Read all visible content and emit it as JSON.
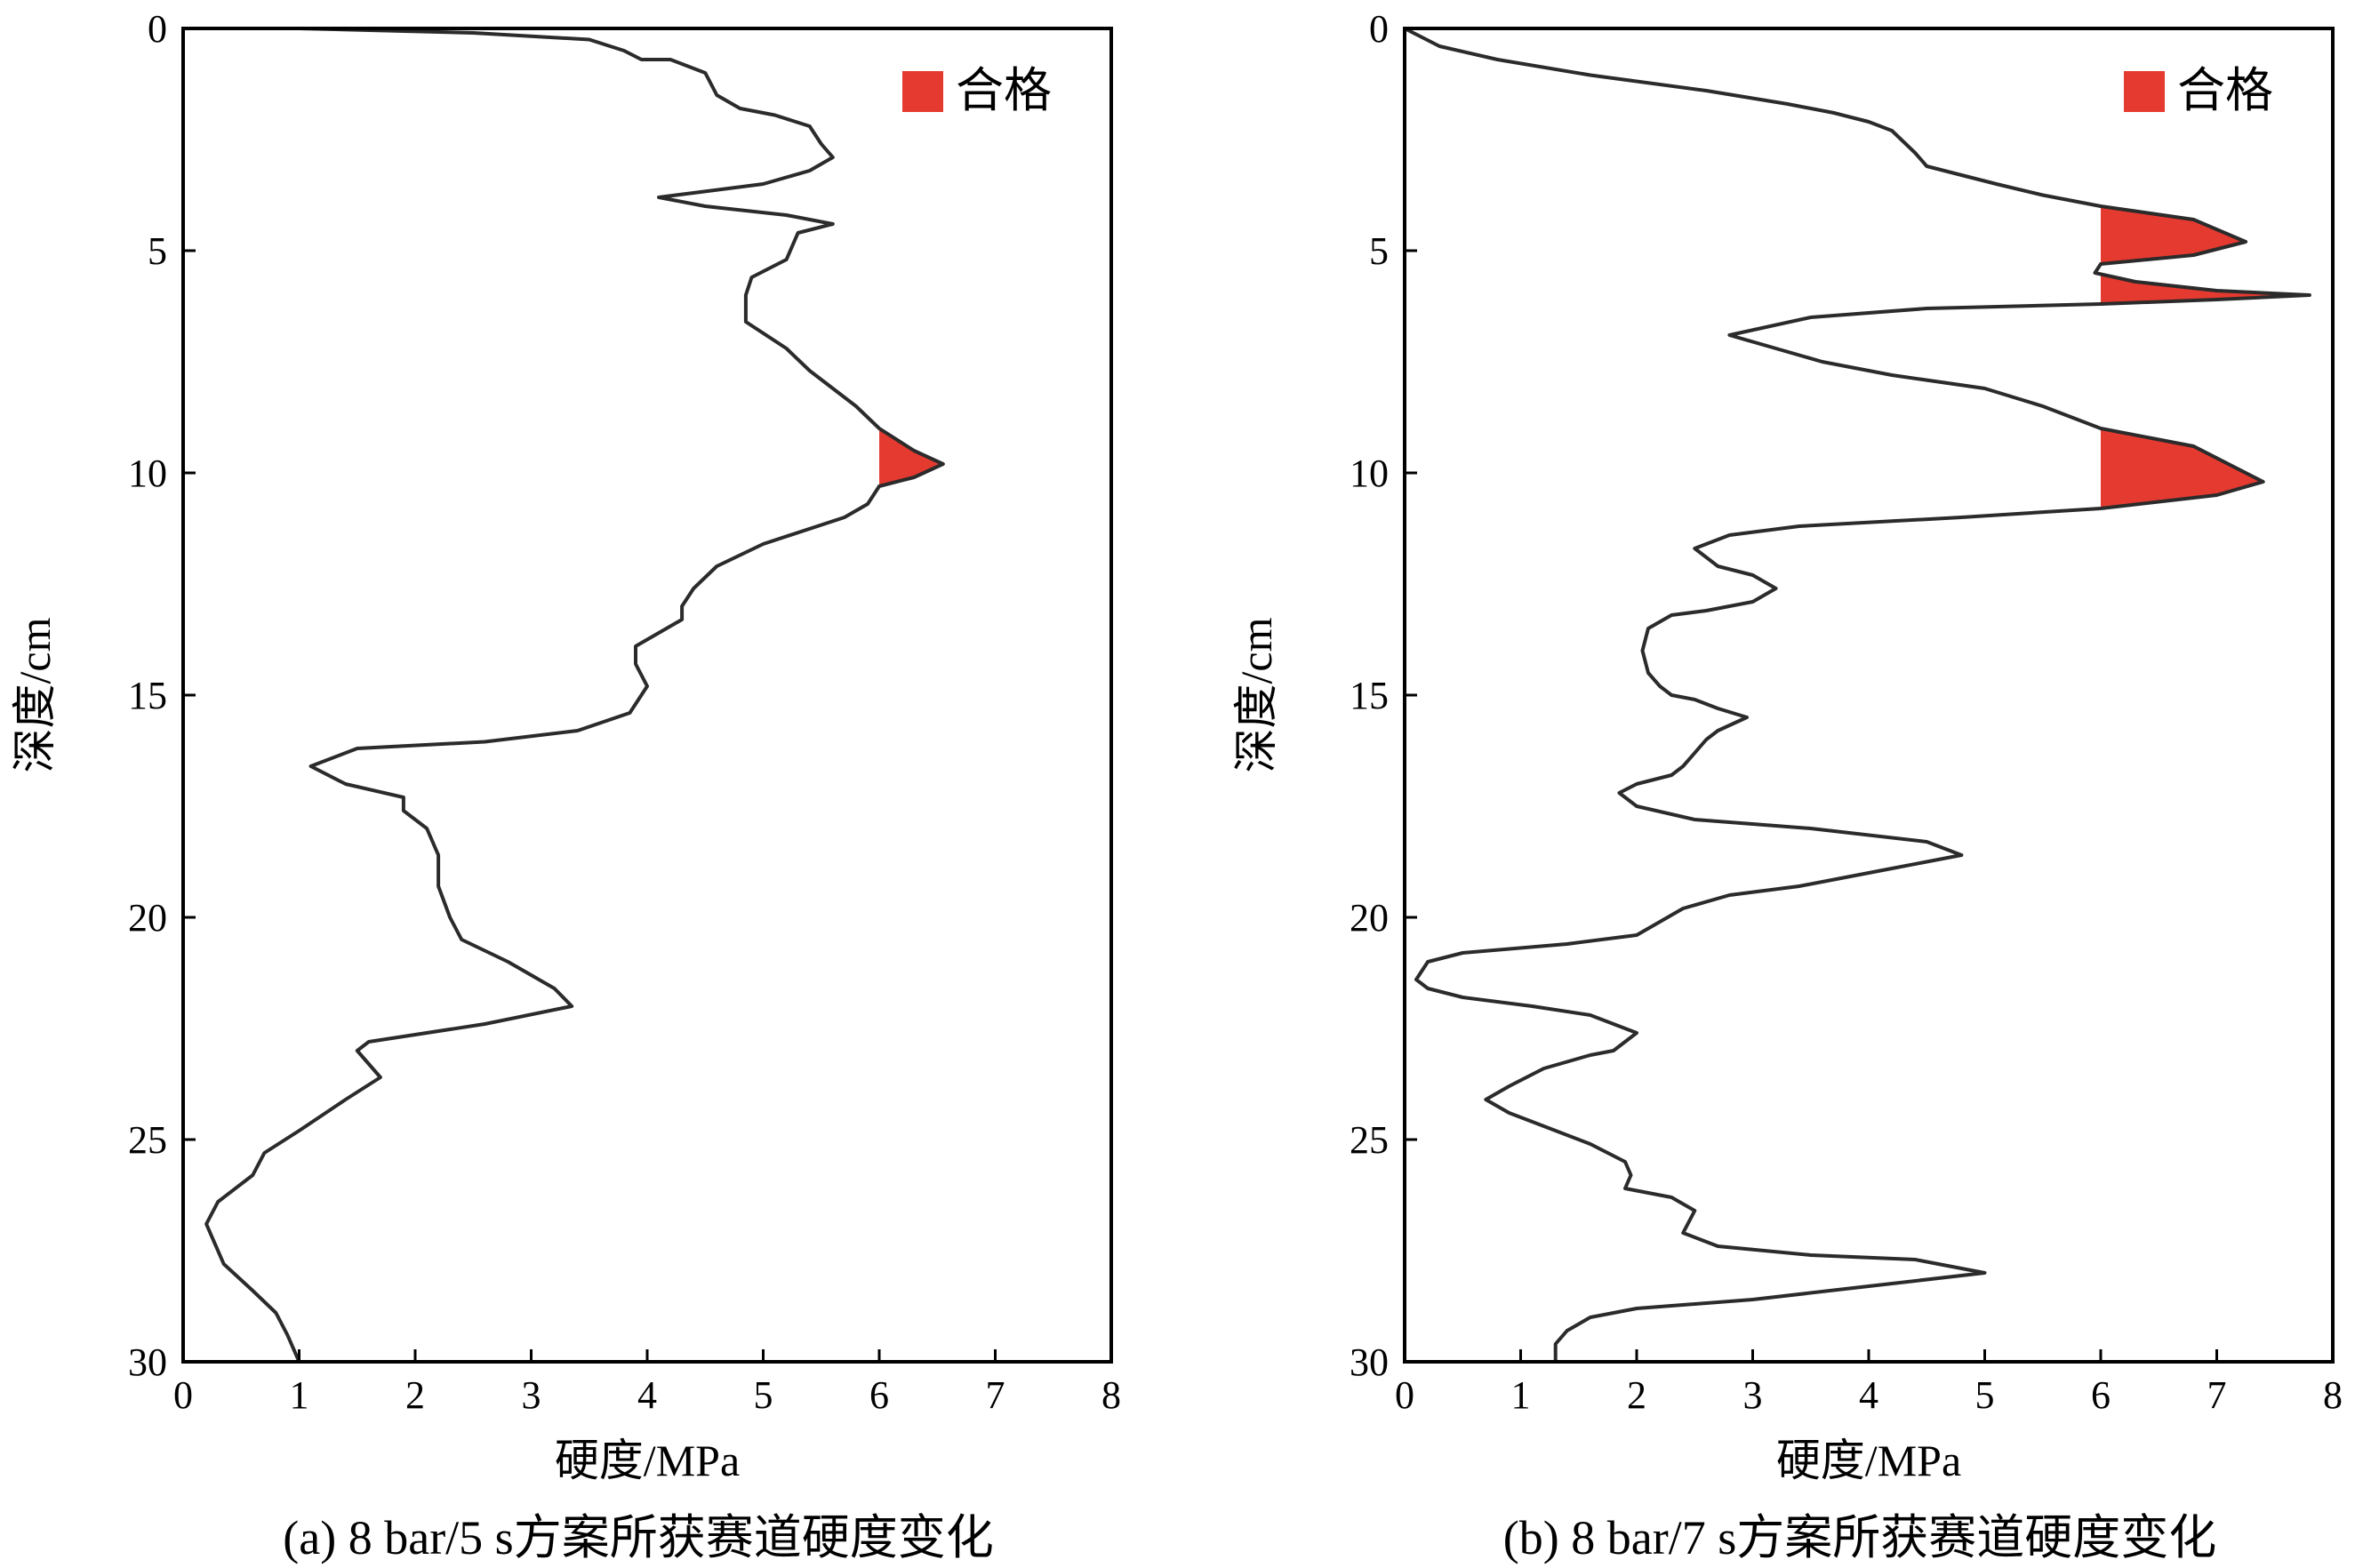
{
  "qualify_threshold": 6,
  "colors": {
    "curve": "#2b2b2b",
    "qualified_fill": "#e53a30",
    "axis": "#000000"
  },
  "chart_data": [
    {
      "type": "line",
      "orientation": "depth-profile",
      "title": "(a) 8 bar/5 s方案所获赛道硬度变化",
      "xlabel": "硬度/MPa",
      "ylabel": "深度/cm",
      "xlim": [
        0,
        8
      ],
      "ylim": [
        0,
        30
      ],
      "y_inverted": true,
      "xticks": [
        "0",
        "1",
        "2",
        "3",
        "4",
        "5",
        "6",
        "7",
        "8"
      ],
      "yticks": [
        "0",
        "5",
        "10",
        "15",
        "20",
        "25",
        "30"
      ],
      "legend": {
        "label": "合格",
        "position": "top-right"
      },
      "grid": false,
      "series": [
        {
          "points": [
            [
              1.0,
              0
            ],
            [
              2.5,
              0.1
            ],
            [
              3.5,
              0.25
            ],
            [
              3.8,
              0.5
            ],
            [
              3.95,
              0.7
            ],
            [
              4.2,
              0.7
            ],
            [
              4.5,
              1.0
            ],
            [
              4.6,
              1.5
            ],
            [
              4.8,
              1.8
            ],
            [
              5.1,
              1.95
            ],
            [
              5.4,
              2.2
            ],
            [
              5.5,
              2.6
            ],
            [
              5.6,
              2.9
            ],
            [
              5.4,
              3.2
            ],
            [
              5.0,
              3.5
            ],
            [
              4.4,
              3.7
            ],
            [
              4.1,
              3.8
            ],
            [
              4.5,
              4.0
            ],
            [
              5.2,
              4.2
            ],
            [
              5.6,
              4.4
            ],
            [
              5.3,
              4.6
            ],
            [
              5.25,
              4.9
            ],
            [
              5.2,
              5.2
            ],
            [
              4.9,
              5.6
            ],
            [
              4.85,
              6.0
            ],
            [
              4.85,
              6.6
            ],
            [
              5.2,
              7.2
            ],
            [
              5.4,
              7.7
            ],
            [
              5.6,
              8.1
            ],
            [
              5.8,
              8.5
            ],
            [
              6.0,
              9.0
            ],
            [
              6.3,
              9.5
            ],
            [
              6.55,
              9.8
            ],
            [
              6.3,
              10.1
            ],
            [
              6.0,
              10.3
            ],
            [
              5.9,
              10.7
            ],
            [
              5.7,
              11.0
            ],
            [
              5.0,
              11.6
            ],
            [
              4.6,
              12.1
            ],
            [
              4.4,
              12.6
            ],
            [
              4.3,
              13.0
            ],
            [
              4.3,
              13.3
            ],
            [
              4.1,
              13.6
            ],
            [
              3.9,
              13.9
            ],
            [
              3.9,
              14.3
            ],
            [
              4.0,
              14.8
            ],
            [
              3.85,
              15.4
            ],
            [
              3.4,
              15.8
            ],
            [
              2.6,
              16.05
            ],
            [
              1.5,
              16.2
            ],
            [
              1.1,
              16.6
            ],
            [
              1.4,
              17.0
            ],
            [
              1.9,
              17.3
            ],
            [
              1.9,
              17.6
            ],
            [
              2.1,
              18.0
            ],
            [
              2.2,
              18.6
            ],
            [
              2.2,
              19.3
            ],
            [
              2.3,
              20.0
            ],
            [
              2.4,
              20.5
            ],
            [
              2.8,
              21.0
            ],
            [
              3.2,
              21.6
            ],
            [
              3.35,
              22.0
            ],
            [
              2.6,
              22.4
            ],
            [
              1.6,
              22.8
            ],
            [
              1.5,
              23.0
            ],
            [
              1.7,
              23.6
            ],
            [
              1.4,
              24.1
            ],
            [
              1.0,
              24.8
            ],
            [
              0.7,
              25.3
            ],
            [
              0.6,
              25.8
            ],
            [
              0.3,
              26.4
            ],
            [
              0.2,
              26.9
            ],
            [
              0.25,
              27.2
            ],
            [
              0.35,
              27.8
            ],
            [
              0.6,
              28.4
            ],
            [
              0.8,
              28.9
            ],
            [
              0.9,
              29.4
            ],
            [
              1.0,
              30.0
            ]
          ]
        }
      ],
      "qualified_regions": [
        {
          "depth_range": [
            9.0,
            10.4
          ]
        }
      ]
    },
    {
      "type": "line",
      "orientation": "depth-profile",
      "title": "(b) 8 bar/7 s方案所获赛道硬度变化",
      "xlabel": "硬度/MPa",
      "ylabel": "深度/cm",
      "xlim": [
        0,
        8
      ],
      "ylim": [
        0,
        30
      ],
      "y_inverted": true,
      "xticks": [
        "0",
        "1",
        "2",
        "3",
        "4",
        "5",
        "6",
        "7",
        "8"
      ],
      "yticks": [
        "0",
        "5",
        "10",
        "15",
        "20",
        "25",
        "30"
      ],
      "legend": {
        "label": "合格",
        "position": "top-right"
      },
      "grid": false,
      "series": [
        {
          "points": [
            [
              0.0,
              0
            ],
            [
              0.3,
              0.4
            ],
            [
              0.8,
              0.7
            ],
            [
              1.6,
              1.05
            ],
            [
              2.6,
              1.4
            ],
            [
              3.3,
              1.7
            ],
            [
              3.7,
              1.9
            ],
            [
              4.0,
              2.1
            ],
            [
              4.2,
              2.3
            ],
            [
              4.4,
              2.8
            ],
            [
              4.5,
              3.1
            ],
            [
              4.8,
              3.3
            ],
            [
              5.1,
              3.5
            ],
            [
              5.5,
              3.75
            ],
            [
              6.0,
              4.0
            ],
            [
              6.8,
              4.3
            ],
            [
              7.25,
              4.8
            ],
            [
              6.8,
              5.1
            ],
            [
              6.0,
              5.3
            ],
            [
              5.95,
              5.5
            ],
            [
              6.3,
              5.7
            ],
            [
              7.0,
              5.9
            ],
            [
              7.8,
              6.0
            ],
            [
              7.0,
              6.1
            ],
            [
              6.0,
              6.2
            ],
            [
              4.5,
              6.3
            ],
            [
              3.5,
              6.5
            ],
            [
              2.8,
              6.9
            ],
            [
              3.2,
              7.2
            ],
            [
              3.6,
              7.5
            ],
            [
              4.2,
              7.8
            ],
            [
              5.0,
              8.1
            ],
            [
              5.5,
              8.5
            ],
            [
              6.0,
              9.0
            ],
            [
              6.8,
              9.4
            ],
            [
              7.4,
              10.2
            ],
            [
              7.0,
              10.5
            ],
            [
              6.0,
              10.8
            ],
            [
              4.8,
              11.0
            ],
            [
              3.4,
              11.2
            ],
            [
              2.8,
              11.4
            ],
            [
              2.5,
              11.7
            ],
            [
              2.7,
              12.1
            ],
            [
              3.0,
              12.3
            ],
            [
              3.2,
              12.6
            ],
            [
              3.0,
              12.9
            ],
            [
              2.6,
              13.1
            ],
            [
              2.3,
              13.2
            ],
            [
              2.1,
              13.5
            ],
            [
              2.05,
              14.0
            ],
            [
              2.1,
              14.5
            ],
            [
              2.2,
              14.8
            ],
            [
              2.3,
              15.0
            ],
            [
              2.5,
              15.1
            ],
            [
              2.7,
              15.3
            ],
            [
              2.95,
              15.5
            ],
            [
              2.7,
              15.8
            ],
            [
              2.6,
              16.0
            ],
            [
              2.5,
              16.3
            ],
            [
              2.4,
              16.6
            ],
            [
              2.3,
              16.8
            ],
            [
              2.0,
              17.0
            ],
            [
              1.85,
              17.2
            ],
            [
              2.0,
              17.5
            ],
            [
              2.5,
              17.8
            ],
            [
              3.5,
              18.0
            ],
            [
              4.5,
              18.3
            ],
            [
              4.8,
              18.6
            ],
            [
              4.2,
              18.9
            ],
            [
              3.4,
              19.3
            ],
            [
              2.8,
              19.5
            ],
            [
              2.4,
              19.8
            ],
            [
              2.2,
              20.1
            ],
            [
              2.0,
              20.4
            ],
            [
              1.4,
              20.6
            ],
            [
              0.5,
              20.8
            ],
            [
              0.2,
              21.0
            ],
            [
              0.1,
              21.4
            ],
            [
              0.2,
              21.6
            ],
            [
              0.5,
              21.8
            ],
            [
              1.1,
              22.0
            ],
            [
              1.6,
              22.2
            ],
            [
              2.0,
              22.6
            ],
            [
              1.8,
              23.0
            ],
            [
              1.6,
              23.1
            ],
            [
              1.2,
              23.4
            ],
            [
              0.9,
              23.8
            ],
            [
              0.7,
              24.1
            ],
            [
              0.9,
              24.4
            ],
            [
              1.3,
              24.8
            ],
            [
              1.6,
              25.1
            ],
            [
              1.9,
              25.5
            ],
            [
              1.95,
              25.8
            ],
            [
              1.9,
              26.1
            ],
            [
              2.1,
              26.2
            ],
            [
              2.3,
              26.3
            ],
            [
              2.5,
              26.6
            ],
            [
              2.4,
              27.1
            ],
            [
              2.7,
              27.4
            ],
            [
              3.5,
              27.6
            ],
            [
              4.4,
              27.7
            ],
            [
              5.0,
              28.0
            ],
            [
              4.0,
              28.3
            ],
            [
              3.0,
              28.6
            ],
            [
              2.0,
              28.8
            ],
            [
              1.6,
              29.0
            ],
            [
              1.4,
              29.3
            ],
            [
              1.3,
              29.6
            ],
            [
              1.3,
              30.0
            ]
          ]
        }
      ],
      "qualified_regions": [
        {
          "depth_range": [
            4.0,
            6.2
          ]
        },
        {
          "depth_range": [
            9.0,
            10.8
          ]
        }
      ]
    }
  ]
}
